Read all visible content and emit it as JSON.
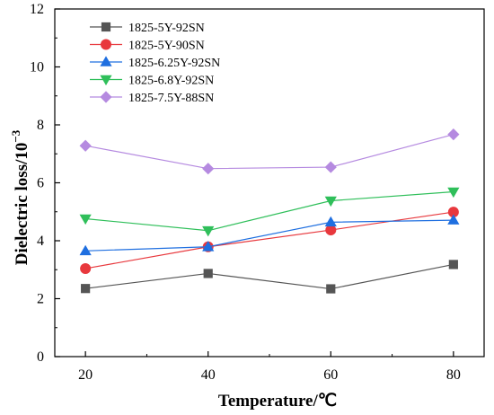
{
  "chart_data": {
    "type": "line",
    "title": "",
    "xlabel": "Temperature/℃",
    "ylabel": "Dielectric loss/10",
    "ylabel_superscript": "−3",
    "xlim": [
      15,
      85
    ],
    "ylim": [
      0,
      12
    ],
    "x_ticks": [
      20,
      40,
      60,
      80
    ],
    "y_ticks": [
      0,
      2,
      4,
      6,
      8,
      10,
      12
    ],
    "grid": false,
    "legend_position": "top-left",
    "x": [
      20,
      40,
      60,
      80
    ],
    "series": [
      {
        "name": "1825-5Y-92SN",
        "values": [
          2.35,
          2.87,
          2.34,
          3.18
        ],
        "color": "#555555",
        "marker": "square"
      },
      {
        "name": "1825-5Y-90SN",
        "values": [
          3.04,
          3.79,
          4.37,
          4.99
        ],
        "color": "#e8383d",
        "marker": "circle"
      },
      {
        "name": "1825-6.25Y-92SN",
        "values": [
          3.65,
          3.79,
          4.64,
          4.71
        ],
        "color": "#1f6fe0",
        "marker": "triangle-up"
      },
      {
        "name": "1825-6.8Y-92SN",
        "values": [
          4.76,
          4.35,
          5.38,
          5.69
        ],
        "color": "#2fbf5a",
        "marker": "triangle-down"
      },
      {
        "name": "1825-7.5Y-88SN",
        "values": [
          7.28,
          6.49,
          6.54,
          7.67
        ],
        "color": "#b58ae0",
        "marker": "diamond"
      }
    ]
  }
}
